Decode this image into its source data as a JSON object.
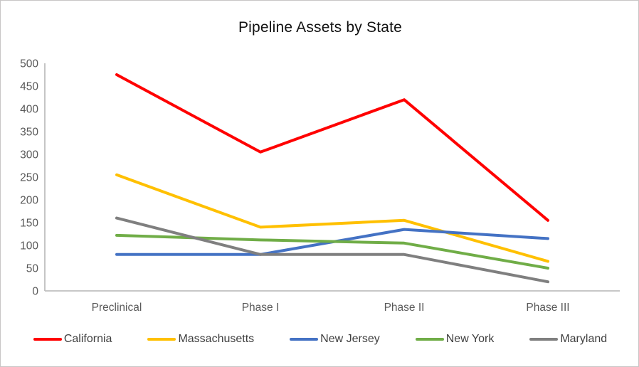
{
  "title": "Pipeline Assets by State",
  "chart_data": {
    "type": "line",
    "title": "Pipeline Assets by State",
    "categories": [
      "Preclinical",
      "Phase I",
      "Phase II",
      "Phase III"
    ],
    "series": [
      {
        "name": "California",
        "color": "#ff0000",
        "values": [
          475,
          305,
          420,
          155
        ]
      },
      {
        "name": "Massachusetts",
        "color": "#ffc000",
        "values": [
          255,
          140,
          155,
          65
        ]
      },
      {
        "name": "New Jersey",
        "color": "#4472c4",
        "values": [
          80,
          80,
          135,
          115
        ]
      },
      {
        "name": "New York",
        "color": "#70ad47",
        "values": [
          122,
          112,
          105,
          50
        ]
      },
      {
        "name": "Maryland",
        "color": "#7f7f7f",
        "values": [
          160,
          80,
          80,
          20
        ]
      }
    ],
    "xlabel": "",
    "ylabel": "",
    "ylim": [
      0,
      500
    ],
    "ytick_step": 50,
    "yticks": [
      0,
      50,
      100,
      150,
      200,
      250,
      300,
      350,
      400,
      450,
      500
    ],
    "grid": false,
    "legend_position": "bottom",
    "line_width": 4,
    "axis_color": "#bfbfbf",
    "tick_label_color": "#595959",
    "legend_text_color": "#404040"
  }
}
